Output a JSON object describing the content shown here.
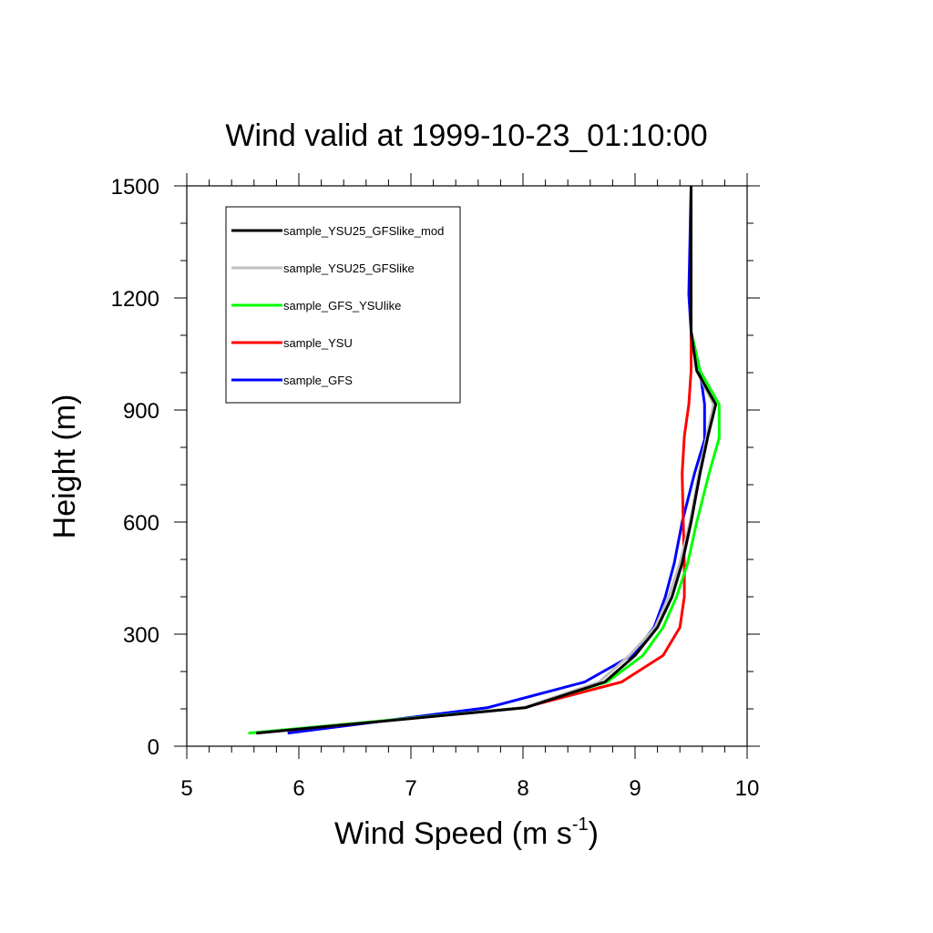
{
  "chart_data": {
    "type": "line",
    "title": "Wind valid at 1999-10-23_01:10:00",
    "xlabel": "Wind Speed (m s",
    "xlabel_sup": "-1",
    "xlabel_end": ")",
    "ylabel": "Height (m)",
    "xlim": [
      5,
      10
    ],
    "ylim": [
      0,
      1500
    ],
    "xticks": [
      "5",
      "6",
      "7",
      "8",
      "9",
      "10"
    ],
    "yticks": [
      "0",
      "300",
      "600",
      "900",
      "1200",
      "1500"
    ],
    "legend_position": "top-left",
    "grid": false,
    "series": [
      {
        "name": "sample_YSU25_GFSlike_mod",
        "color": "#000000",
        "points": [
          [
            5.62,
            35
          ],
          [
            8.02,
            103
          ],
          [
            8.73,
            172
          ],
          [
            9.0,
            243
          ],
          [
            9.2,
            318
          ],
          [
            9.33,
            400
          ],
          [
            9.42,
            490
          ],
          [
            9.5,
            600
          ],
          [
            9.58,
            730
          ],
          [
            9.65,
            830
          ],
          [
            9.72,
            915
          ],
          [
            9.55,
            1005
          ],
          [
            9.5,
            1110
          ],
          [
            9.5,
            1200
          ],
          [
            9.5,
            1500
          ]
        ]
      },
      {
        "name": "sample_YSU25_GFSlike",
        "color": "#c0c0c0",
        "points": [
          [
            5.62,
            35
          ],
          [
            8.0,
            103
          ],
          [
            8.68,
            172
          ],
          [
            8.95,
            243
          ],
          [
            9.18,
            318
          ],
          [
            9.3,
            400
          ],
          [
            9.4,
            490
          ],
          [
            9.49,
            600
          ],
          [
            9.57,
            730
          ],
          [
            9.64,
            830
          ],
          [
            9.7,
            915
          ],
          [
            9.55,
            1005
          ],
          [
            9.5,
            1110
          ],
          [
            9.5,
            1200
          ],
          [
            9.5,
            1500
          ]
        ]
      },
      {
        "name": "sample_GFS_YSUlike",
        "color": "#00ff00",
        "points": [
          [
            5.55,
            35
          ],
          [
            8.0,
            103
          ],
          [
            8.75,
            172
          ],
          [
            9.07,
            243
          ],
          [
            9.25,
            318
          ],
          [
            9.37,
            400
          ],
          [
            9.47,
            490
          ],
          [
            9.55,
            600
          ],
          [
            9.66,
            730
          ],
          [
            9.75,
            825
          ],
          [
            9.75,
            915
          ],
          [
            9.58,
            1005
          ],
          [
            9.5,
            1110
          ],
          [
            9.5,
            1200
          ],
          [
            9.5,
            1500
          ]
        ]
      },
      {
        "name": "sample_YSU",
        "color": "#ff0000",
        "points": [
          [
            5.62,
            35
          ],
          [
            8.0,
            103
          ],
          [
            8.88,
            172
          ],
          [
            9.25,
            243
          ],
          [
            9.4,
            318
          ],
          [
            9.44,
            400
          ],
          [
            9.44,
            490
          ],
          [
            9.43,
            600
          ],
          [
            9.42,
            730
          ],
          [
            9.44,
            830
          ],
          [
            9.48,
            915
          ],
          [
            9.5,
            1005
          ],
          [
            9.5,
            1110
          ],
          [
            9.5,
            1200
          ],
          [
            9.5,
            1500
          ]
        ]
      },
      {
        "name": "sample_GFS",
        "color": "#0000ff",
        "points": [
          [
            5.9,
            35
          ],
          [
            7.68,
            103
          ],
          [
            8.55,
            172
          ],
          [
            8.97,
            243
          ],
          [
            9.17,
            318
          ],
          [
            9.27,
            400
          ],
          [
            9.35,
            490
          ],
          [
            9.42,
            600
          ],
          [
            9.53,
            730
          ],
          [
            9.62,
            820
          ],
          [
            9.62,
            915
          ],
          [
            9.58,
            1005
          ],
          [
            9.5,
            1110
          ],
          [
            9.48,
            1210
          ],
          [
            9.5,
            1500
          ]
        ]
      }
    ]
  }
}
